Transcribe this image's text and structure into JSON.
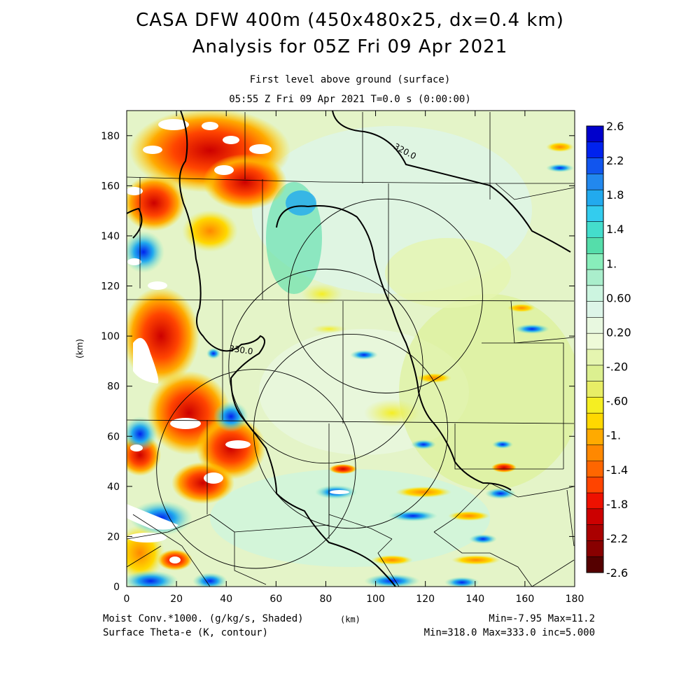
{
  "header": {
    "title_line1": "CASA DFW 400m (450x480x25, dx=0.4 km)",
    "title_line2": "Analysis for 05Z Fri 09 Apr 2021",
    "subtitle_line1": "First level above ground (surface)",
    "subtitle_line2": "05:55 Z Fri 09 Apr 2021    T=0.0 s (0:00:00)"
  },
  "footer": {
    "left_line1": "Moist Conv.*1000. (g/kg/s, Shaded)",
    "left_line2": "Surface Theta-e (K, contour)",
    "x_unit": "(km)",
    "right_line1": "Min=-7.95 Max=11.2",
    "right_line2": "Min=318.0 Max=333.0 inc=5.000"
  },
  "chart_data": {
    "type": "heatmap",
    "xlabel": "(km)",
    "ylabel": "(km)",
    "xlim": [
      0,
      180
    ],
    "ylim": [
      0,
      190
    ],
    "x_ticks": [
      "0",
      "20",
      "40",
      "60",
      "80",
      "100",
      "120",
      "140",
      "160",
      "180"
    ],
    "y_ticks": [
      "0",
      "20",
      "40",
      "60",
      "80",
      "100",
      "120",
      "140",
      "160",
      "180"
    ],
    "contour_labels": [
      {
        "text": "320.0",
        "x": 107,
        "y": 175
      },
      {
        "text": "330.0",
        "x": 41,
        "y": 94
      }
    ],
    "radar_rings": [
      {
        "cx": 104,
        "cy": 116,
        "r": 39
      },
      {
        "cx": 80,
        "cy": 88,
        "r": 39
      },
      {
        "cx": 90,
        "cy": 62,
        "r": 39
      },
      {
        "cx": 52,
        "cy": 47,
        "r": 40
      }
    ],
    "colorbar": {
      "labels": [
        "2.6",
        "2.2",
        "1.8",
        "1.4",
        "1.",
        "0.60",
        "0.20",
        "-.20",
        "-.60",
        "-1.",
        "-1.4",
        "-1.8",
        "-2.2",
        "-2.6"
      ],
      "colors": [
        "#0000cc",
        "#0022ee",
        "#1155ee",
        "#2288ee",
        "#22aaee",
        "#33ccee",
        "#44ddcc",
        "#55ddaa",
        "#88eebb",
        "#aaeecc",
        "#ccf5e0",
        "#ddf5e8",
        "#e8f8e0",
        "#eefad8",
        "#e5f5b0",
        "#dcf090",
        "#e8ee66",
        "#f5ee22",
        "#ffd800",
        "#ffaa00",
        "#ff8800",
        "#ff6600",
        "#ff4400",
        "#ee1100",
        "#cc0000",
        "#aa0000",
        "#880000",
        "#550000"
      ]
    }
  }
}
